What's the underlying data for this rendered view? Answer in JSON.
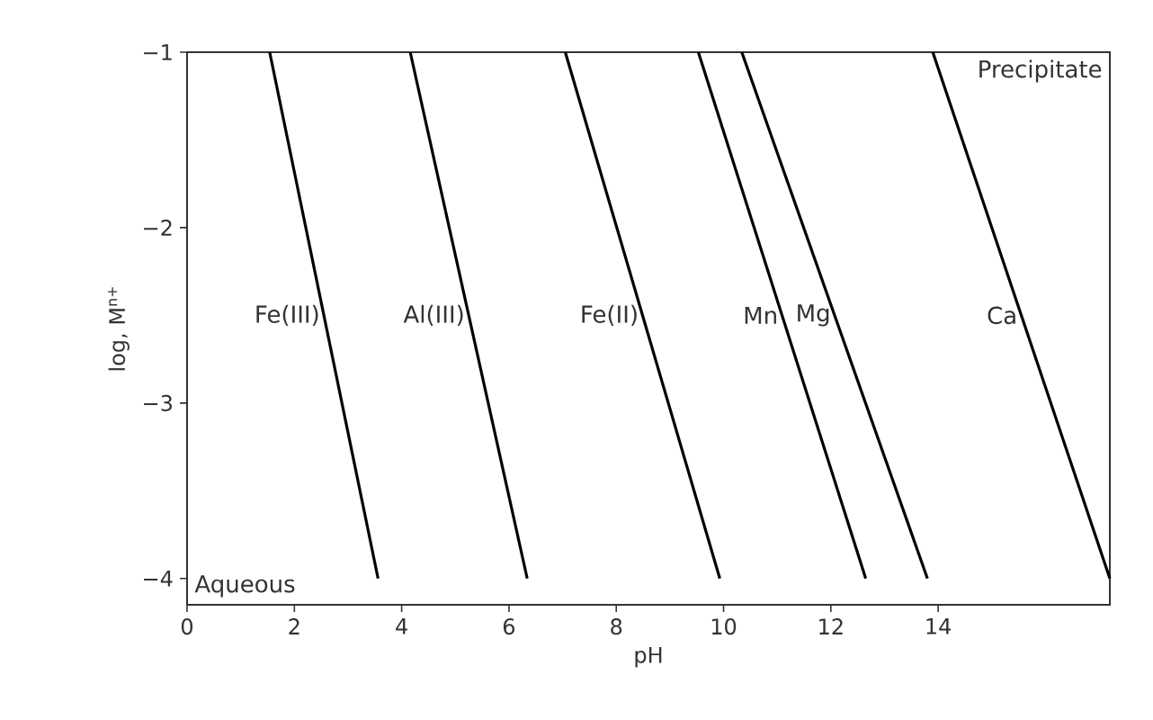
{
  "chart_data": {
    "type": "line",
    "xlabel": "pH",
    "ylabel": "log, M$^{n+}$",
    "series": [
      {
        "name": "Fe(III)",
        "color": "#000000",
        "x": [
          1.54,
          3.56
        ],
        "values": [
          -1,
          -4
        ]
      },
      {
        "name": "Al(III)",
        "color": "#000000",
        "x": [
          4.16,
          6.34
        ],
        "values": [
          -1,
          -4
        ]
      },
      {
        "name": "Fe(II)",
        "color": "#000000",
        "x": [
          7.05,
          9.93
        ],
        "values": [
          -1,
          -4
        ]
      },
      {
        "name": "Mn",
        "color": "#000000",
        "x": [
          9.53,
          12.65
        ],
        "values": [
          -1,
          -4
        ]
      },
      {
        "name": "Mg",
        "color": "#000000",
        "x": [
          10.34,
          13.8
        ],
        "values": [
          -1,
          -4
        ]
      },
      {
        "name": "Ca",
        "color": "#000000",
        "x": [
          13.9,
          17.2
        ],
        "values": [
          -1,
          -4
        ]
      }
    ],
    "annotations": [
      "Precipitate",
      "Aqueous"
    ],
    "xlim": [
      0,
      17.2
    ],
    "ylim": [
      -4.15,
      -1
    ],
    "xticks": [
      0,
      2,
      4,
      6,
      8,
      10,
      12,
      14
    ],
    "yticks": [
      {
        "value": -4,
        "label": "−4"
      },
      {
        "value": -3,
        "label": "−3"
      },
      {
        "value": -2,
        "label": "−2"
      },
      {
        "value": -1,
        "label": "−1"
      }
    ],
    "grid": false,
    "marker": "none",
    "line_style": "solid"
  }
}
